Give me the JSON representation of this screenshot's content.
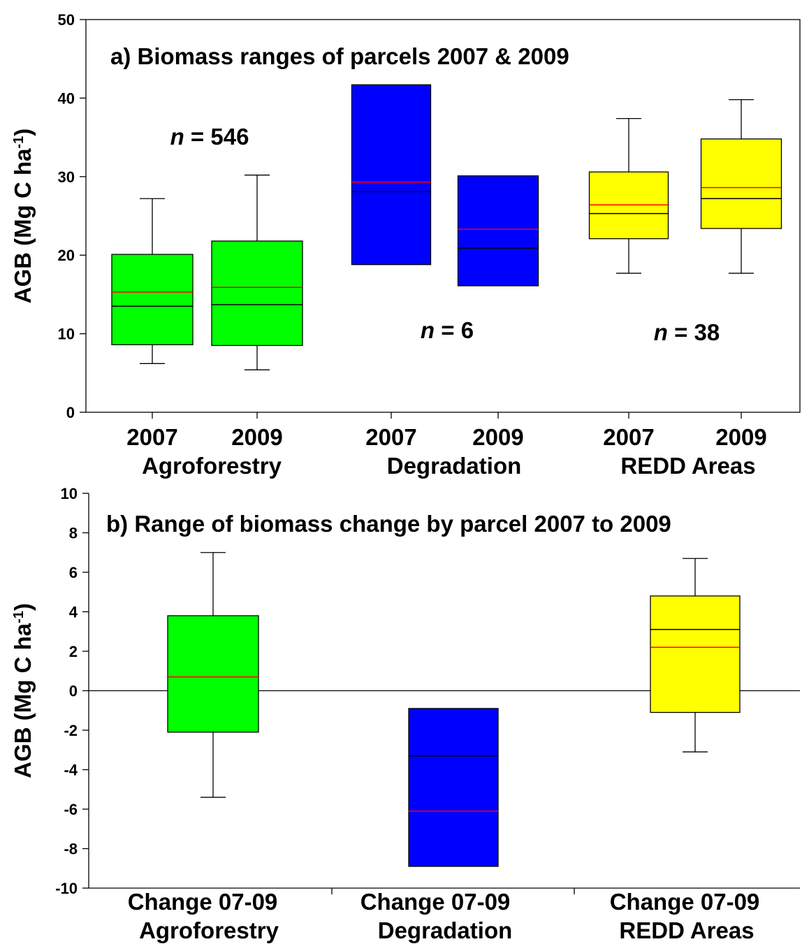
{
  "colors": {
    "Agroforestry": "#00ff00",
    "Degradation": "#0000ff",
    "REDD Areas": "#ffff00",
    "mean_line": "#ff0000",
    "median_line": "#000000"
  },
  "chart_data": [
    {
      "type": "box",
      "title": "a) Biomass ranges of parcels 2007 & 2009",
      "ylabel_main": "AGB (Mg C ha",
      "ylabel_sup": "-1",
      "ylabel_close": ")",
      "ylim": [
        0,
        50
      ],
      "yticks": [
        0,
        10,
        20,
        30,
        40,
        50
      ],
      "grid": false,
      "groups": [
        "Agroforestry",
        "Degradation",
        "REDD Areas"
      ],
      "categories": [
        "2007",
        "2009",
        "2007",
        "2009",
        "2007",
        "2009"
      ],
      "annotations": [
        {
          "prefix": "n",
          "text": " = 546",
          "group": "Agroforestry"
        },
        {
          "prefix": "n",
          "text": " = 6",
          "group": "Degradation"
        },
        {
          "prefix": "n",
          "text": " = 38",
          "group": "REDD Areas"
        }
      ],
      "boxes": [
        {
          "group": "Agroforestry",
          "year": "2007",
          "whisker_low": 6.2,
          "q1": 8.6,
          "median": 13.5,
          "mean": 15.3,
          "q3": 20.1,
          "whisker_high": 27.2
        },
        {
          "group": "Agroforestry",
          "year": "2009",
          "whisker_low": 5.4,
          "q1": 8.5,
          "median": 13.7,
          "mean": 15.9,
          "q3": 21.8,
          "whisker_high": 30.2
        },
        {
          "group": "Degradation",
          "year": "2007",
          "whisker_low": null,
          "q1": 18.8,
          "median": 28.1,
          "mean": 29.3,
          "q3": 41.7,
          "whisker_high": null
        },
        {
          "group": "Degradation",
          "year": "2009",
          "whisker_low": null,
          "q1": 16.1,
          "median": 20.9,
          "mean": 23.3,
          "q3": 30.1,
          "whisker_high": null
        },
        {
          "group": "REDD Areas",
          "year": "2007",
          "whisker_low": 17.7,
          "q1": 22.1,
          "median": 25.3,
          "mean": 26.4,
          "q3": 30.6,
          "whisker_high": 37.4
        },
        {
          "group": "REDD Areas",
          "year": "2009",
          "whisker_low": 17.7,
          "q1": 23.4,
          "median": 27.2,
          "mean": 28.6,
          "q3": 34.8,
          "whisker_high": 39.8
        }
      ]
    },
    {
      "type": "box",
      "title": "b) Range of biomass change by parcel 2007 to 2009",
      "ylabel_main": "AGB (Mg C ha",
      "ylabel_sup": "-1",
      "ylabel_close": ")",
      "ylim": [
        -10,
        10
      ],
      "yticks": [
        -10,
        -8,
        -6,
        -4,
        -2,
        0,
        2,
        4,
        6,
        8,
        10
      ],
      "grid": false,
      "zero_line": true,
      "categories": [
        "Change 07-09",
        "Change 07-09",
        "Change 07-09"
      ],
      "groups": [
        "Agroforestry",
        "Degradation",
        "REDD Areas"
      ],
      "boxes": [
        {
          "group": "Agroforestry",
          "whisker_low": -5.4,
          "q1": -2.1,
          "median": 0.7,
          "mean": 0.7,
          "q3": 3.8,
          "whisker_high": 7.0
        },
        {
          "group": "Degradation",
          "whisker_low": null,
          "q1": -8.9,
          "median": -3.3,
          "mean": -6.1,
          "q3": -0.9,
          "whisker_high": null
        },
        {
          "group": "REDD Areas",
          "whisker_low": -3.1,
          "q1": -1.1,
          "median": 3.1,
          "mean": 2.2,
          "q3": 4.8,
          "whisker_high": 6.7
        }
      ]
    }
  ]
}
